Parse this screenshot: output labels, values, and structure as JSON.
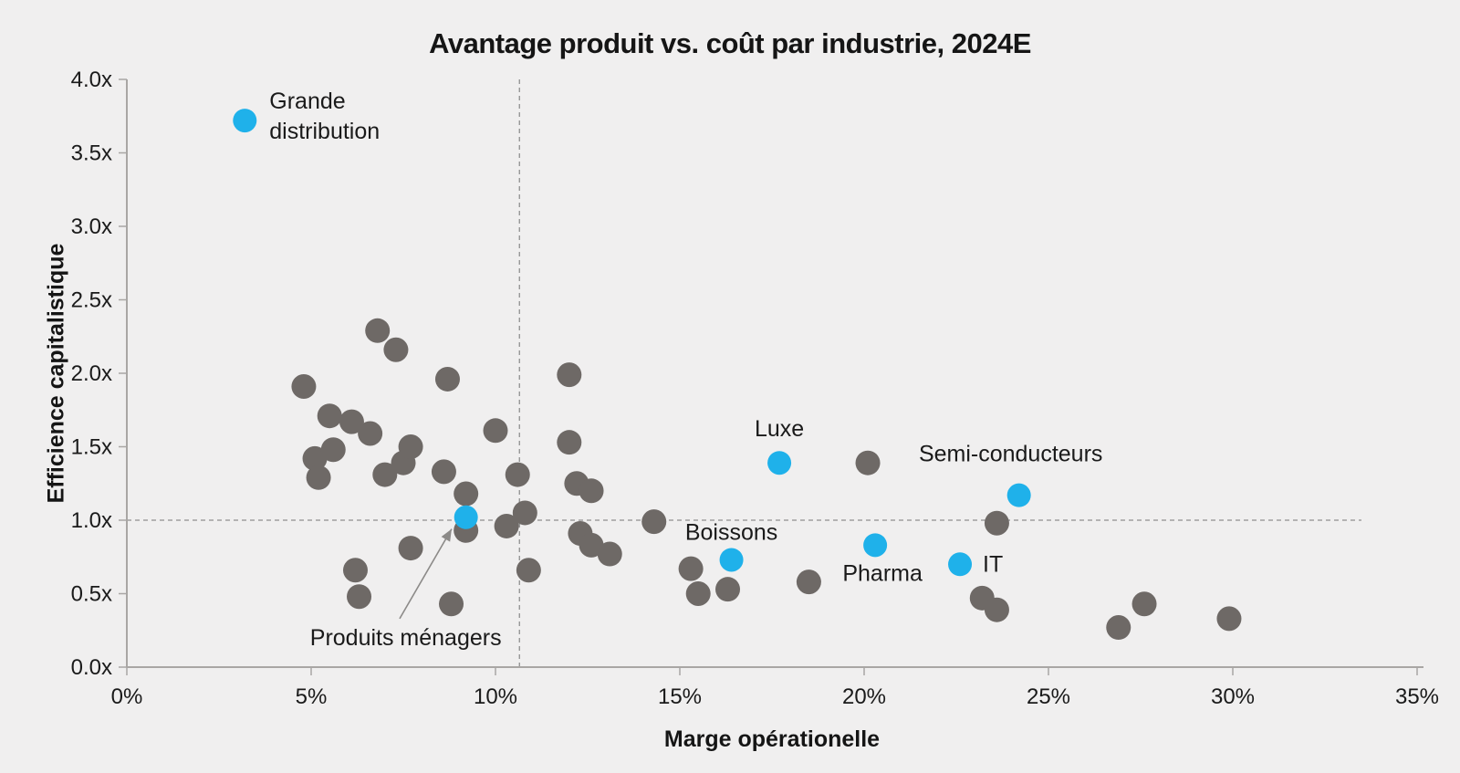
{
  "chart": {
    "title": "Avantage produit vs. coût par industrie, 2024E",
    "xlabel": "Marge opérationelle",
    "ylabel": "Efficience capitalistique"
  },
  "chart_data": {
    "type": "scatter",
    "title": "Avantage produit vs. coût par industrie, 2024E",
    "xlabel": "Marge opérationelle",
    "ylabel": "Efficience capitalistique",
    "xlim": [
      0,
      35
    ],
    "ylim": [
      0,
      4
    ],
    "x_tick_values": [
      0,
      5,
      10,
      15,
      20,
      25,
      30,
      35
    ],
    "x_tick_labels": [
      "0%",
      "5%",
      "10%",
      "15%",
      "20%",
      "25%",
      "30%",
      "35%"
    ],
    "y_tick_values": [
      0,
      0.5,
      1,
      1.5,
      2,
      2.5,
      3,
      3.5,
      4
    ],
    "y_tick_labels": [
      "0.0x",
      "0.5x",
      "1.0x",
      "1.5x",
      "2.0x",
      "2.5x",
      "3.0x",
      "3.5x",
      "4.0x"
    ],
    "grid": false,
    "legend": "none",
    "reference_lines": {
      "vertical_x": 10.65,
      "horizontal_y": 1.0,
      "style": "dashed"
    },
    "colors": {
      "highlight": "#1FB1EA",
      "default": "#6E6966",
      "axis": "#A9A6A4",
      "dashed": "#8F8F8F",
      "text": "#1a1a1a",
      "background": "#f0efef"
    },
    "series": [
      {
        "name": "Industries mises en avant",
        "color": "#1FB1EA",
        "points": [
          {
            "label": "Grande distribution",
            "lines": [
              "Grande",
              "distribution"
            ],
            "x": 3.2,
            "y": 3.72,
            "anchor": "start",
            "label_dx": 27,
            "label_dy": -13
          },
          {
            "label": "Produits ménagers",
            "lines": [
              "Produits ménagers"
            ],
            "x": 9.2,
            "y": 1.02,
            "anchor": "middle",
            "label_dx": -66,
            "label_dy": 140
          },
          {
            "label": "Boissons",
            "lines": [
              "Boissons"
            ],
            "x": 16.4,
            "y": 0.73,
            "anchor": "middle",
            "label_dx": 0,
            "label_dy": -22
          },
          {
            "label": "Luxe",
            "lines": [
              "Luxe"
            ],
            "x": 17.7,
            "y": 1.39,
            "anchor": "middle",
            "label_dx": 0,
            "label_dy": -29
          },
          {
            "label": "Pharma",
            "lines": [
              "Pharma"
            ],
            "x": 20.3,
            "y": 0.83,
            "anchor": "middle",
            "label_dx": 8,
            "label_dy": 39
          },
          {
            "label": "IT",
            "lines": [
              "IT"
            ],
            "x": 22.6,
            "y": 0.7,
            "anchor": "start",
            "label_dx": 25,
            "label_dy": 8
          },
          {
            "label": "Semi-conducteurs",
            "lines": [
              "Semi-conducteurs"
            ],
            "x": 24.2,
            "y": 1.17,
            "anchor": "middle",
            "label_dx": -9,
            "label_dy": -37
          }
        ]
      },
      {
        "name": "Autres industries",
        "color": "#6E6966",
        "points": [
          {
            "x": 4.8,
            "y": 1.91
          },
          {
            "x": 5.1,
            "y": 1.42
          },
          {
            "x": 5.2,
            "y": 1.29
          },
          {
            "x": 5.5,
            "y": 1.71
          },
          {
            "x": 5.6,
            "y": 1.48
          },
          {
            "x": 6.1,
            "y": 1.67
          },
          {
            "x": 6.2,
            "y": 0.66
          },
          {
            "x": 6.3,
            "y": 0.48
          },
          {
            "x": 6.6,
            "y": 1.59
          },
          {
            "x": 6.8,
            "y": 2.29
          },
          {
            "x": 7.0,
            "y": 1.31
          },
          {
            "x": 7.3,
            "y": 2.16
          },
          {
            "x": 7.5,
            "y": 1.39
          },
          {
            "x": 7.7,
            "y": 1.5
          },
          {
            "x": 7.7,
            "y": 0.81
          },
          {
            "x": 8.6,
            "y": 1.33
          },
          {
            "x": 8.7,
            "y": 1.96
          },
          {
            "x": 8.8,
            "y": 0.43
          },
          {
            "x": 9.2,
            "y": 1.18
          },
          {
            "x": 9.2,
            "y": 0.93
          },
          {
            "x": 10.0,
            "y": 1.61
          },
          {
            "x": 10.3,
            "y": 0.96
          },
          {
            "x": 10.6,
            "y": 1.31
          },
          {
            "x": 10.8,
            "y": 1.05
          },
          {
            "x": 10.9,
            "y": 0.66
          },
          {
            "x": 12.0,
            "y": 1.99
          },
          {
            "x": 12.0,
            "y": 1.53
          },
          {
            "x": 12.2,
            "y": 1.25
          },
          {
            "x": 12.3,
            "y": 0.91
          },
          {
            "x": 12.6,
            "y": 1.2
          },
          {
            "x": 12.6,
            "y": 0.83
          },
          {
            "x": 13.1,
            "y": 0.77
          },
          {
            "x": 14.3,
            "y": 0.99
          },
          {
            "x": 15.3,
            "y": 0.67
          },
          {
            "x": 15.5,
            "y": 0.5
          },
          {
            "x": 16.3,
            "y": 0.53
          },
          {
            "x": 18.5,
            "y": 0.58
          },
          {
            "x": 20.1,
            "y": 1.39
          },
          {
            "x": 23.2,
            "y": 0.47
          },
          {
            "x": 23.6,
            "y": 0.98
          },
          {
            "x": 23.6,
            "y": 0.39
          },
          {
            "x": 26.9,
            "y": 0.27
          },
          {
            "x": 27.6,
            "y": 0.43
          },
          {
            "x": 29.9,
            "y": 0.33
          }
        ]
      }
    ],
    "annotation_arrow": {
      "label": "Produits ménagers",
      "from_x": 7.4,
      "from_y": 0.33,
      "to_x": 8.81,
      "to_y": 0.94
    }
  }
}
